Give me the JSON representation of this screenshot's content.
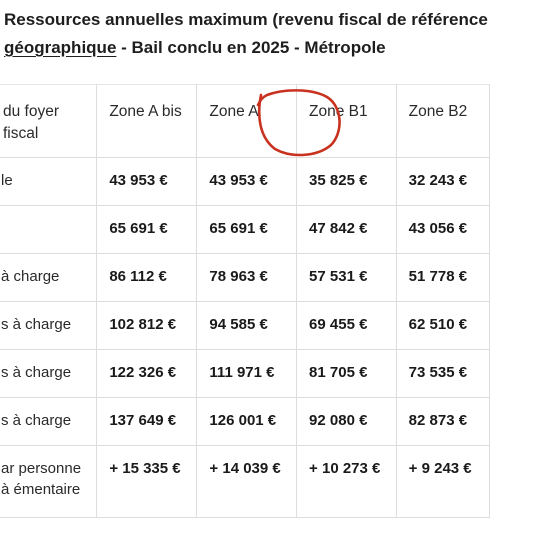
{
  "heading": {
    "line1": "Ressources annuelles maximum (revenu fiscal de référence",
    "line2_underlined": "géographique",
    "line2_rest": " - Bail conclu en 2025 - Métropole"
  },
  "table": {
    "headers": [
      "du foyer fiscal",
      "Zone A bis",
      "Zone A",
      "Zone B1",
      "Zone B2"
    ],
    "rows": [
      {
        "label": "le",
        "values": [
          "43 953 €",
          "43 953 €",
          "35 825 €",
          "32 243 €"
        ]
      },
      {
        "label": "",
        "values": [
          "65 691 €",
          "65 691 €",
          "47 842 €",
          "43 056 €"
        ]
      },
      {
        "label": "à charge",
        "values": [
          "86 112 €",
          "78 963 €",
          "57 531 €",
          "51 778 €"
        ]
      },
      {
        "label": "s à charge",
        "values": [
          "102 812 €",
          "94 585 €",
          "69 455 €",
          "62 510 €"
        ]
      },
      {
        "label": "s à charge",
        "values": [
          "122 326 €",
          "111 971 €",
          "81 705 €",
          "73 535 €"
        ]
      },
      {
        "label": "s à charge",
        "values": [
          "137 649 €",
          "126 001 €",
          "92 080 €",
          "82 873 €"
        ]
      },
      {
        "label": "ar personne à émentaire",
        "values": [
          "+ 15 335 €",
          "+ 14 039 €",
          "+ 10 273 €",
          "+ 9 243 €"
        ]
      }
    ]
  },
  "annotation": {
    "color": "#c8321e",
    "target": "Zone A"
  }
}
